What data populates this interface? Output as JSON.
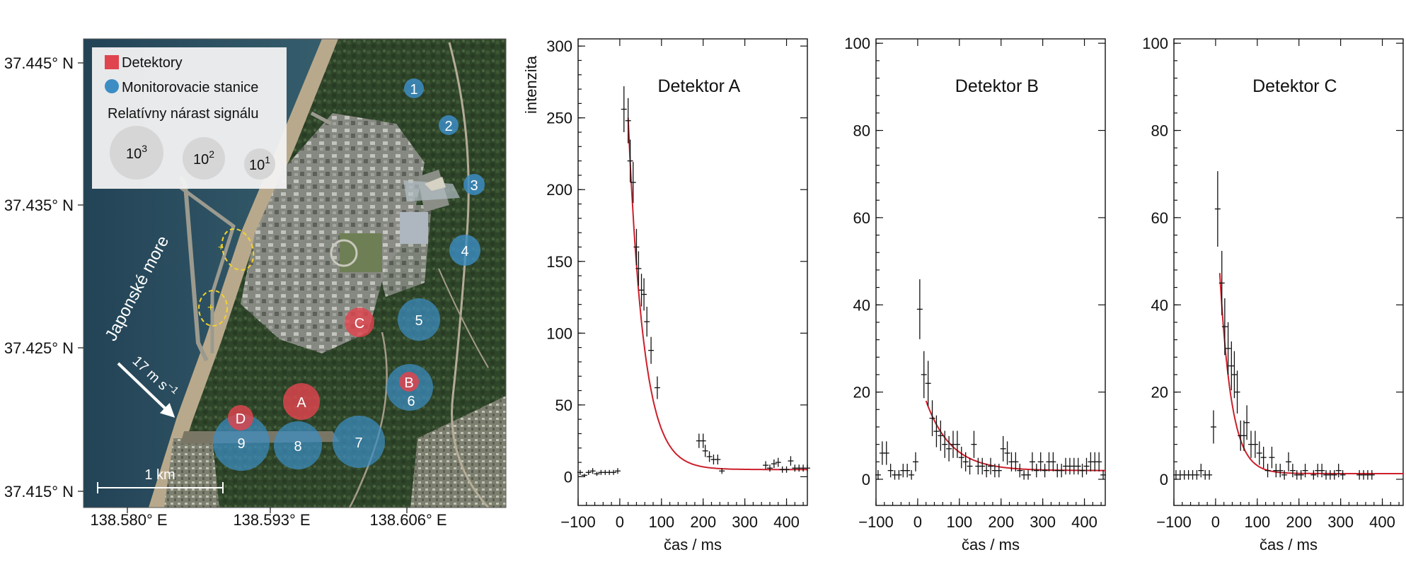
{
  "map": {
    "lat_labels": [
      "37.445° N",
      "37.435° N",
      "37.425° N",
      "37.415° N"
    ],
    "lon_labels": [
      "138.580° E",
      "138.593° E",
      "138.606° E"
    ],
    "legend": {
      "detectors_label": "Detektory",
      "stations_label": "Monitorovacie stanice",
      "size_title": "Relatívny nárast signálu",
      "sizes": [
        {
          "base": "10",
          "exp": "3"
        },
        {
          "base": "10",
          "exp": "2"
        },
        {
          "base": "10",
          "exp": "1"
        }
      ]
    },
    "sea_label": "Japonské more",
    "wind": {
      "value": "17 m s",
      "exp": "−1"
    },
    "scale_label": "1 km",
    "stations": [
      "1",
      "2",
      "3",
      "4",
      "5",
      "6",
      "7",
      "8",
      "9"
    ],
    "detectors": [
      "A",
      "B",
      "C",
      "D"
    ],
    "colors": {
      "detector": "#e0444e",
      "station": "#3c8dc4"
    }
  },
  "chart_data": [
    {
      "type": "scatter",
      "title": "Detektor A",
      "xlabel": "čas / ms",
      "ylabel": "intenzita",
      "xlim": [
        -100,
        450
      ],
      "ylim": [
        -20,
        305
      ],
      "xticks": [
        "−100",
        "0",
        "100",
        "200",
        "300",
        "400"
      ],
      "yticks": [
        "0",
        "50",
        "100",
        "150",
        "200",
        "250",
        "300"
      ],
      "points": [
        [
          -95,
          3
        ],
        [
          -85,
          1
        ],
        [
          -75,
          3
        ],
        [
          -65,
          4
        ],
        [
          -55,
          2
        ],
        [
          -45,
          3
        ],
        [
          -35,
          3
        ],
        [
          -25,
          3
        ],
        [
          -15,
          3
        ],
        [
          -5,
          4
        ],
        [
          10,
          256
        ],
        [
          20,
          248
        ],
        [
          25,
          220
        ],
        [
          32,
          205
        ],
        [
          40,
          160
        ],
        [
          45,
          145
        ],
        [
          52,
          130
        ],
        [
          58,
          127
        ],
        [
          65,
          108
        ],
        [
          75,
          88
        ],
        [
          90,
          62
        ],
        [
          190,
          25
        ],
        [
          200,
          25
        ],
        [
          205,
          18
        ],
        [
          215,
          14
        ],
        [
          225,
          12
        ],
        [
          235,
          12
        ],
        [
          245,
          4
        ],
        [
          350,
          8
        ],
        [
          360,
          6
        ],
        [
          370,
          9
        ],
        [
          380,
          10
        ],
        [
          390,
          5
        ],
        [
          400,
          5
        ],
        [
          410,
          11
        ],
        [
          420,
          6
        ],
        [
          430,
          6
        ],
        [
          440,
          6
        ],
        [
          450,
          6
        ]
      ],
      "fit": {
        "label": "fit",
        "amp": 245,
        "tau": 37,
        "offset": 5,
        "t0": 20,
        "color": "#cc1f2a"
      }
    },
    {
      "type": "scatter",
      "title": "Detektor B",
      "xlabel": "čas / ms",
      "ylabel": "",
      "xlim": [
        -100,
        450
      ],
      "ylim": [
        -6,
        101
      ],
      "xticks": [
        "−100",
        "0",
        "100",
        "200",
        "300",
        "400"
      ],
      "yticks": [
        "0",
        "20",
        "40",
        "60",
        "80",
        "100"
      ],
      "points": [
        [
          -95,
          1
        ],
        [
          -85,
          6
        ],
        [
          -75,
          6
        ],
        [
          -65,
          2
        ],
        [
          -55,
          1
        ],
        [
          -45,
          1
        ],
        [
          -35,
          2
        ],
        [
          -25,
          2
        ],
        [
          -15,
          1
        ],
        [
          -5,
          4
        ],
        [
          5,
          39
        ],
        [
          15,
          24
        ],
        [
          25,
          22
        ],
        [
          35,
          14
        ],
        [
          45,
          11
        ],
        [
          55,
          10
        ],
        [
          65,
          8
        ],
        [
          75,
          7
        ],
        [
          85,
          8
        ],
        [
          95,
          8
        ],
        [
          105,
          5
        ],
        [
          115,
          4
        ],
        [
          125,
          3
        ],
        [
          135,
          8
        ],
        [
          145,
          3
        ],
        [
          155,
          3
        ],
        [
          165,
          2
        ],
        [
          175,
          3
        ],
        [
          185,
          2
        ],
        [
          195,
          2
        ],
        [
          205,
          7
        ],
        [
          215,
          6
        ],
        [
          225,
          4
        ],
        [
          235,
          4
        ],
        [
          245,
          2
        ],
        [
          255,
          1
        ],
        [
          265,
          1
        ],
        [
          275,
          4
        ],
        [
          285,
          2
        ],
        [
          295,
          4
        ],
        [
          305,
          2
        ],
        [
          315,
          4
        ],
        [
          325,
          4
        ],
        [
          335,
          2
        ],
        [
          345,
          2
        ],
        [
          355,
          3
        ],
        [
          365,
          3
        ],
        [
          375,
          3
        ],
        [
          385,
          3
        ],
        [
          395,
          2
        ],
        [
          405,
          3
        ],
        [
          415,
          4
        ],
        [
          425,
          4
        ],
        [
          435,
          4
        ],
        [
          445,
          1
        ]
      ],
      "fit": {
        "label": "fit",
        "amp": 16,
        "tau": 60,
        "offset": 2,
        "t0": 20,
        "color": "#cc1f2a"
      }
    },
    {
      "type": "scatter",
      "title": "Detektor C",
      "xlabel": "čas / ms",
      "ylabel": "",
      "xlim": [
        -100,
        450
      ],
      "ylim": [
        -6,
        101
      ],
      "xticks": [
        "−100",
        "0",
        "100",
        "200",
        "300",
        "400"
      ],
      "yticks": [
        "0",
        "20",
        "40",
        "60",
        "80",
        "100"
      ],
      "points": [
        [
          -95,
          1
        ],
        [
          -85,
          1
        ],
        [
          -75,
          1
        ],
        [
          -65,
          1
        ],
        [
          -55,
          1
        ],
        [
          -45,
          1
        ],
        [
          -35,
          2
        ],
        [
          -25,
          1
        ],
        [
          -15,
          1
        ],
        [
          -5,
          12
        ],
        [
          5,
          62
        ],
        [
          15,
          45
        ],
        [
          22,
          35
        ],
        [
          30,
          30
        ],
        [
          38,
          26
        ],
        [
          45,
          24
        ],
        [
          52,
          20
        ],
        [
          60,
          10
        ],
        [
          68,
          10
        ],
        [
          75,
          13
        ],
        [
          85,
          8
        ],
        [
          95,
          8
        ],
        [
          105,
          6
        ],
        [
          115,
          5
        ],
        [
          125,
          2
        ],
        [
          135,
          5
        ],
        [
          145,
          2
        ],
        [
          155,
          2
        ],
        [
          165,
          1
        ],
        [
          175,
          4
        ],
        [
          185,
          2
        ],
        [
          195,
          1
        ],
        [
          205,
          1
        ],
        [
          215,
          2
        ],
        [
          235,
          1
        ],
        [
          245,
          2
        ],
        [
          255,
          2
        ],
        [
          265,
          1
        ],
        [
          275,
          1
        ],
        [
          285,
          1
        ],
        [
          295,
          2
        ],
        [
          305,
          1
        ],
        [
          345,
          1
        ],
        [
          355,
          1
        ],
        [
          365,
          1
        ],
        [
          375,
          1
        ]
      ],
      "fit": {
        "label": "fit",
        "amp": 46,
        "tau": 28,
        "offset": 1.3,
        "t0": 10,
        "color": "#cc1f2a"
      }
    }
  ]
}
